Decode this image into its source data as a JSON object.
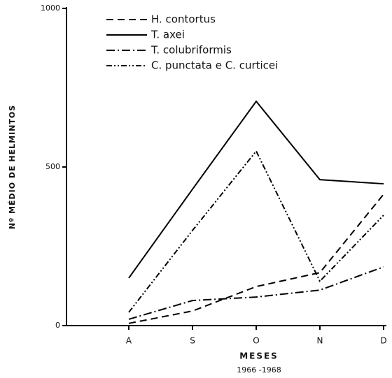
{
  "chart_data": {
    "type": "line",
    "ylabel": "Nº MÉDIO DE HELMINTOS",
    "xlabel": "MESES",
    "subtitle": "1966 -1968",
    "categories": [
      null,
      "A",
      "S",
      "O",
      "N",
      "D"
    ],
    "ylim": [
      0,
      1000
    ],
    "yticks": [
      0,
      500,
      1000
    ],
    "series": [
      {
        "name": "H. contortus",
        "color": "#000000",
        "dash": "10,6",
        "values": [
          null,
          7,
          46,
          123,
          167,
          414
        ]
      },
      {
        "name": "T. axei",
        "color": "#000000",
        "dash": "none",
        "values": [
          null,
          150,
          430,
          707,
          460,
          447
        ]
      },
      {
        "name": "T. colubriformis",
        "color": "#000000",
        "dash": "12,4,2,4",
        "values": [
          null,
          20,
          79,
          90,
          112,
          185
        ]
      },
      {
        "name": "C. punctata e C. curticei",
        "color": "#000000",
        "dash": "8,3,2,3,2,3",
        "values": [
          null,
          42,
          300,
          550,
          140,
          348
        ]
      }
    ],
    "legend": "top"
  }
}
